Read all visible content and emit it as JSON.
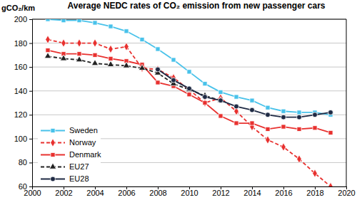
{
  "chart_data": {
    "type": "line",
    "title": "Average NEDC rates of CO₂ emission from new passenger cars",
    "y_label": "gCO₂/km",
    "x": [
      2001,
      2002,
      2003,
      2004,
      2005,
      2006,
      2007,
      2008,
      2009,
      2010,
      2011,
      2012,
      2013,
      2014,
      2015,
      2016,
      2017,
      2018,
      2019
    ],
    "series": [
      {
        "name": "Sweden",
        "color": "#48c2ea",
        "marker": "square",
        "line_style": "solid",
        "values": [
          200,
          199,
          199,
          197,
          194,
          190,
          183,
          175,
          166,
          156,
          146,
          139,
          135,
          132,
          126,
          123,
          122,
          122,
          120
        ]
      },
      {
        "name": "Norway",
        "color": "#e8312f",
        "marker": "diamond",
        "line_style": "dashed",
        "values": [
          183,
          180,
          180,
          180,
          175,
          177,
          159,
          158,
          151,
          141,
          130,
          134,
          123,
          110,
          99,
          93,
          83,
          71,
          60
        ]
      },
      {
        "name": "Denmark",
        "color": "#e8312f",
        "marker": "square",
        "line_style": "solid",
        "values": [
          174,
          171,
          171,
          170,
          167,
          165,
          162,
          147,
          144,
          137,
          130,
          119,
          113,
          113,
          108,
          110,
          108,
          109,
          105
        ]
      },
      {
        "name": "EU27",
        "color": "#222222",
        "marker": "triangle",
        "line_style": "dashed",
        "values": [
          169,
          167,
          166,
          163,
          162,
          161,
          159,
          155,
          146,
          141,
          136,
          132,
          null,
          null,
          null,
          null,
          null,
          null,
          null
        ]
      },
      {
        "name": "EU28",
        "color": "#1f2a44",
        "marker": "circle",
        "line_style": "solid",
        "values": [
          null,
          null,
          null,
          null,
          null,
          null,
          null,
          158,
          149,
          142,
          135,
          132,
          127,
          124,
          120,
          118,
          118,
          120,
          122
        ]
      }
    ],
    "xlim": [
      2000,
      2020
    ],
    "xticks": [
      2000,
      2002,
      2004,
      2006,
      2008,
      2010,
      2012,
      2014,
      2016,
      2018,
      2020
    ],
    "ylim": [
      60,
      200
    ],
    "yticks": [
      60,
      80,
      100,
      120,
      140,
      160,
      180,
      200
    ],
    "grid": true,
    "legend": "left"
  }
}
